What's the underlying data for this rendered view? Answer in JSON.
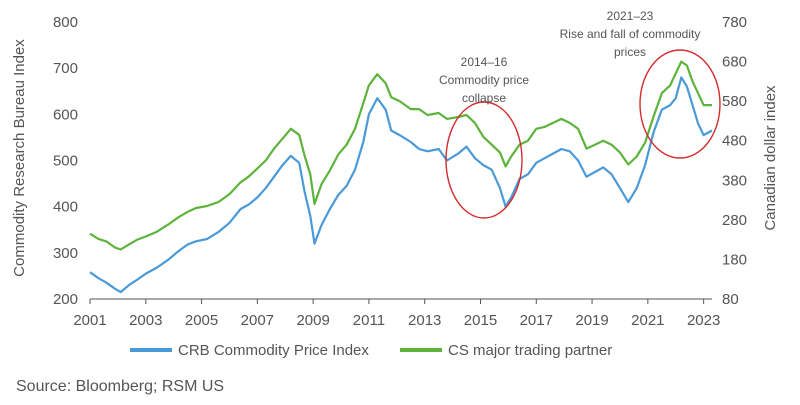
{
  "chart_data": {
    "type": "line",
    "ylabel": "Commodity Research Bureau Index",
    "y2label": "Canadian dollar index",
    "ylim": [
      200,
      800
    ],
    "yticks": [
      200,
      300,
      400,
      500,
      600,
      700,
      800
    ],
    "y2lim": [
      80,
      780
    ],
    "y2ticks": [
      80,
      180,
      280,
      380,
      480,
      580,
      680,
      780
    ],
    "xlim": [
      2001,
      2023.3
    ],
    "xticks": [
      2001,
      2003,
      2005,
      2007,
      2009,
      2011,
      2013,
      2015,
      2017,
      2019,
      2021,
      2023
    ],
    "legend_position": "bottom",
    "series": [
      {
        "name": "CRB Commodity Price Index",
        "color": "#4a9ad9",
        "axis": "left",
        "x": [
          2001.0,
          2001.3,
          2001.6,
          2001.9,
          2002.1,
          2002.4,
          2002.7,
          2003.0,
          2003.4,
          2003.8,
          2004.2,
          2004.5,
          2004.8,
          2005.2,
          2005.6,
          2006.0,
          2006.4,
          2006.7,
          2007.0,
          2007.3,
          2007.6,
          2007.9,
          2008.2,
          2008.5,
          2008.7,
          2008.9,
          2009.05,
          2009.3,
          2009.6,
          2009.9,
          2010.2,
          2010.5,
          2010.8,
          2011.0,
          2011.3,
          2011.6,
          2011.8,
          2012.1,
          2012.5,
          2012.8,
          2013.1,
          2013.5,
          2013.8,
          2014.2,
          2014.5,
          2014.8,
          2015.1,
          2015.4,
          2015.7,
          2015.9,
          2016.1,
          2016.4,
          2016.7,
          2017.0,
          2017.3,
          2017.6,
          2017.9,
          2018.2,
          2018.5,
          2018.8,
          2019.1,
          2019.4,
          2019.7,
          2020.0,
          2020.3,
          2020.6,
          2020.9,
          2021.2,
          2021.5,
          2021.8,
          2022.0,
          2022.2,
          2022.4,
          2022.6,
          2022.8,
          2023.0,
          2023.3
        ],
        "values": [
          258,
          245,
          235,
          222,
          215,
          230,
          242,
          255,
          268,
          285,
          305,
          318,
          325,
          330,
          345,
          365,
          395,
          405,
          420,
          440,
          465,
          490,
          510,
          495,
          430,
          380,
          320,
          360,
          395,
          425,
          445,
          480,
          540,
          600,
          635,
          610,
          565,
          555,
          540,
          525,
          520,
          525,
          500,
          515,
          530,
          505,
          490,
          480,
          440,
          400,
          420,
          460,
          470,
          495,
          505,
          515,
          525,
          520,
          500,
          465,
          475,
          485,
          470,
          440,
          410,
          440,
          490,
          560,
          610,
          620,
          635,
          680,
          660,
          620,
          580,
          555,
          565
        ]
      },
      {
        "name": "CS major trading partner",
        "color": "#5db33b",
        "axis": "right",
        "x": [
          2001.0,
          2001.3,
          2001.6,
          2001.9,
          2002.1,
          2002.4,
          2002.7,
          2003.0,
          2003.4,
          2003.8,
          2004.2,
          2004.5,
          2004.8,
          2005.2,
          2005.6,
          2006.0,
          2006.4,
          2006.7,
          2007.0,
          2007.3,
          2007.6,
          2007.9,
          2008.2,
          2008.5,
          2008.7,
          2008.9,
          2009.05,
          2009.3,
          2009.6,
          2009.9,
          2010.2,
          2010.5,
          2010.8,
          2011.0,
          2011.3,
          2011.6,
          2011.8,
          2012.1,
          2012.5,
          2012.8,
          2013.1,
          2013.5,
          2013.8,
          2014.2,
          2014.5,
          2014.8,
          2015.1,
          2015.4,
          2015.7,
          2015.9,
          2016.1,
          2016.4,
          2016.7,
          2017.0,
          2017.3,
          2017.6,
          2017.9,
          2018.2,
          2018.5,
          2018.8,
          2019.1,
          2019.4,
          2019.7,
          2020.0,
          2020.3,
          2020.6,
          2020.9,
          2021.2,
          2021.5,
          2021.8,
          2022.0,
          2022.2,
          2022.4,
          2022.6,
          2022.8,
          2023.0,
          2023.3
        ],
        "values": [
          245,
          232,
          225,
          210,
          205,
          218,
          230,
          238,
          250,
          268,
          288,
          300,
          310,
          315,
          325,
          345,
          375,
          390,
          410,
          430,
          460,
          485,
          510,
          495,
          440,
          395,
          320,
          370,
          405,
          445,
          470,
          510,
          575,
          620,
          648,
          625,
          590,
          580,
          560,
          560,
          545,
          550,
          535,
          540,
          545,
          525,
          490,
          470,
          450,
          415,
          440,
          470,
          480,
          510,
          515,
          525,
          535,
          525,
          510,
          460,
          470,
          480,
          470,
          450,
          420,
          440,
          475,
          540,
          600,
          620,
          650,
          680,
          670,
          630,
          600,
          570,
          570
        ]
      }
    ],
    "annotations": [
      {
        "lines": [
          "2014–16",
          "Commodity price",
          "collapse"
        ]
      },
      {
        "lines": [
          "2021–23",
          "Rise and fall of commodity",
          "prices"
        ]
      }
    ]
  },
  "source": "Source: Bloomberg; RSM US"
}
